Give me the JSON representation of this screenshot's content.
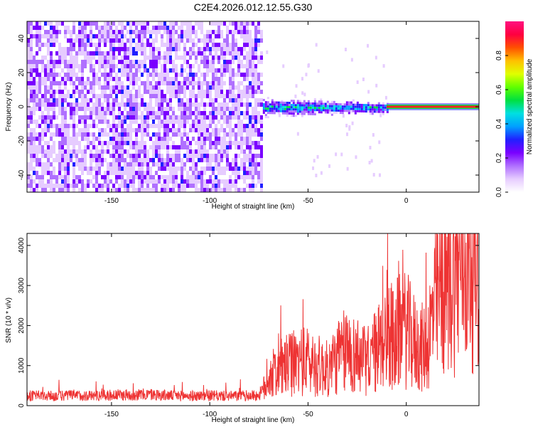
{
  "title": "C2E4.2026.012.12.55.G30",
  "chart_data": [
    {
      "type": "heatmap",
      "name": "spectrogram",
      "xlabel": "Height of straight line (km)",
      "ylabel": "Frequency (Hz)",
      "xlim": [
        -193,
        37
      ],
      "ylim": [
        -50,
        50
      ],
      "x_ticks": [
        -150,
        -100,
        -50,
        0
      ],
      "y_ticks": [
        -40,
        -20,
        0,
        20,
        40
      ],
      "colorbar": {
        "label": "Normalized spectral amplitude",
        "range": [
          0.0,
          1.0
        ],
        "ticks": [
          0.0,
          0.2,
          0.4,
          0.6,
          0.8
        ],
        "colors": [
          "#ffffff",
          "#e6ccff",
          "#b070ff",
          "#7a00ff",
          "#2020ff",
          "#00a0ff",
          "#00e0e0",
          "#00e040",
          "#60ff00",
          "#e0ff00",
          "#ffc000",
          "#ff5000",
          "#ff0040",
          "#ff1080"
        ]
      },
      "regions": [
        {
          "desc": "noise",
          "x_range": [
            -193,
            -73
          ],
          "freq_range": [
            -50,
            50
          ],
          "amplitude": 0.25
        },
        {
          "desc": "signal band",
          "x_range": [
            -73,
            -10
          ],
          "freq_range": [
            -4,
            4
          ],
          "amplitude": 0.45
        },
        {
          "desc": "tone",
          "x_range": [
            -10,
            37
          ],
          "freq_range": [
            -1,
            1
          ],
          "amplitude": 0.9
        }
      ]
    },
    {
      "type": "line",
      "name": "snr",
      "xlabel": "Height of straight line (km)",
      "ylabel": "SNR (10 * v/v)",
      "xlim": [
        -193,
        37
      ],
      "ylim": [
        0,
        4300
      ],
      "x_ticks": [
        -150,
        -100,
        -50,
        0
      ],
      "y_ticks": [
        0,
        1000,
        2000,
        3000,
        4000
      ],
      "series": [
        {
          "name": "SNR",
          "color": "#ee3333",
          "x": [
            -193,
            -180,
            -170,
            -160,
            -150,
            -140,
            -130,
            -120,
            -110,
            -100,
            -90,
            -80,
            -75,
            -72,
            -70,
            -65,
            -60,
            -55,
            -50,
            -45,
            -40,
            -35,
            -30,
            -25,
            -20,
            -15,
            -10,
            -5,
            0,
            5,
            10,
            15,
            20,
            25,
            30,
            37
          ],
          "y": [
            250,
            240,
            260,
            250,
            260,
            270,
            280,
            250,
            240,
            250,
            240,
            250,
            260,
            450,
            700,
            900,
            1000,
            1100,
            1100,
            1000,
            900,
            1200,
            1400,
            1200,
            1100,
            1400,
            1700,
            1800,
            1900,
            1500,
            1400,
            2600,
            3200,
            3500,
            3800,
            3900
          ]
        }
      ]
    }
  ]
}
